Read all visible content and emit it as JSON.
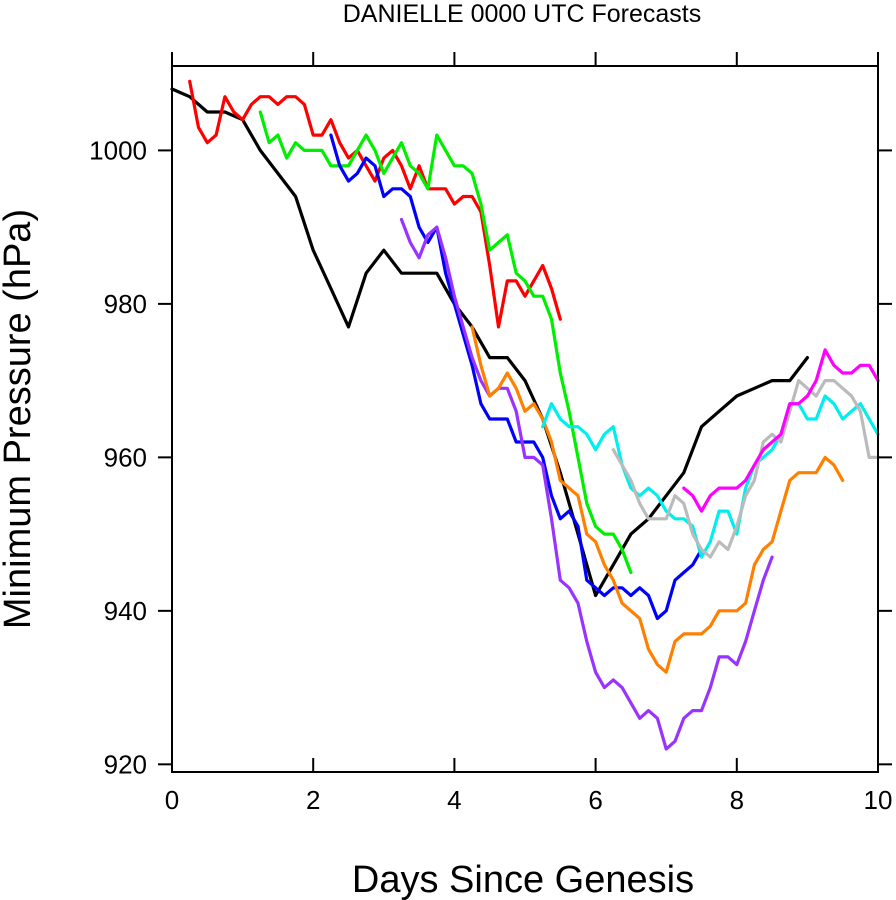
{
  "chart_data": {
    "type": "line",
    "title": "DANIELLE 0000 UTC Forecasts",
    "xlabel": "Days Since Genesis",
    "ylabel": "Minimum Pressure (hPa)",
    "xlim": [
      0,
      10
    ],
    "ylim": [
      919,
      1011
    ],
    "x_ticks": [
      0,
      2,
      4,
      6,
      8,
      10
    ],
    "y_ticks": [
      920,
      940,
      960,
      980,
      1000
    ],
    "x_tick_labels": [
      "0",
      "2",
      "4",
      "6",
      "8",
      "10"
    ],
    "y_tick_labels": [
      "920",
      "940",
      "960",
      "980",
      "1000"
    ],
    "grid": false,
    "legend": "none",
    "series": [
      {
        "color": "#000000",
        "x": [
          0,
          0.25,
          0.5,
          0.75,
          1,
          1.25,
          1.5,
          1.75,
          2,
          2.25,
          2.5,
          2.75,
          3,
          3.25,
          3.5,
          3.75,
          4,
          4.25,
          4.5,
          4.75,
          5,
          5.25,
          5.5,
          5.75,
          6,
          6.25,
          6.5,
          6.75,
          7,
          7.25,
          7.5,
          7.75,
          8,
          8.25,
          8.5,
          8.75,
          9
        ],
        "y": [
          1008,
          1007,
          1005,
          1005,
          1004,
          1000,
          997,
          994,
          987,
          982,
          977,
          984,
          987,
          984,
          984,
          984,
          980,
          977,
          973,
          973,
          970,
          965,
          958,
          950,
          942,
          946,
          950,
          952,
          955,
          958,
          964,
          966,
          968,
          969,
          970,
          970,
          973
        ]
      },
      {
        "color": "#ff0000",
        "x": [
          0.25,
          0.375,
          0.5,
          0.625,
          0.75,
          0.875,
          1,
          1.125,
          1.25,
          1.375,
          1.5,
          1.625,
          1.75,
          1.875,
          2,
          2.125,
          2.25,
          2.375,
          2.5,
          2.625,
          2.75,
          2.875,
          3,
          3.125,
          3.25,
          3.375,
          3.5,
          3.625,
          3.75,
          3.875,
          4,
          4.125,
          4.25,
          4.375,
          4.5,
          4.625,
          4.75,
          4.875,
          5,
          5.125,
          5.25,
          5.375,
          5.5
        ],
        "y": [
          1009,
          1003,
          1001,
          1002,
          1007,
          1005,
          1004,
          1006,
          1007,
          1007,
          1006,
          1007,
          1007,
          1006,
          1002,
          1002,
          1004,
          1001,
          999,
          1000,
          998,
          996,
          999,
          1000,
          998,
          995,
          998,
          995,
          995,
          995,
          993,
          994,
          994,
          992,
          985,
          977,
          983,
          983,
          981,
          983,
          985,
          982,
          978
        ]
      },
      {
        "color": "#00ee00",
        "x": [
          1.25,
          1.375,
          1.5,
          1.625,
          1.75,
          1.875,
          2,
          2.125,
          2.25,
          2.375,
          2.5,
          2.625,
          2.75,
          2.875,
          3,
          3.125,
          3.25,
          3.375,
          3.5,
          3.625,
          3.75,
          3.875,
          4,
          4.125,
          4.25,
          4.375,
          4.5,
          4.625,
          4.75,
          4.875,
          5,
          5.125,
          5.25,
          5.375,
          5.5,
          5.625,
          5.75,
          5.875,
          6,
          6.125,
          6.25,
          6.375,
          6.5
        ],
        "y": [
          1005,
          1001,
          1002,
          999,
          1001,
          1000,
          1000,
          1000,
          998,
          998,
          998,
          1000,
          1002,
          1000,
          997,
          999,
          1001,
          998,
          997,
          995,
          1002,
          1000,
          998,
          998,
          997,
          993,
          987,
          988,
          989,
          984,
          983,
          981,
          981,
          978,
          971,
          966,
          960,
          954,
          951,
          950,
          950,
          948,
          945
        ]
      },
      {
        "color": "#0000ff",
        "x": [
          2.25,
          2.375,
          2.5,
          2.625,
          2.75,
          2.875,
          3,
          3.125,
          3.25,
          3.375,
          3.5,
          3.625,
          3.75,
          3.875,
          4,
          4.125,
          4.25,
          4.375,
          4.5,
          4.625,
          4.75,
          4.875,
          5,
          5.125,
          5.25,
          5.375,
          5.5,
          5.625,
          5.75,
          5.875,
          6,
          6.125,
          6.25,
          6.375,
          6.5,
          6.625,
          6.75,
          6.875,
          7,
          7.125,
          7.25,
          7.375,
          7.5
        ],
        "y": [
          1002,
          998,
          996,
          997,
          999,
          998,
          994,
          995,
          995,
          994,
          990,
          988,
          990,
          984,
          980,
          976,
          972,
          967,
          965,
          965,
          965,
          962,
          962,
          962,
          960,
          955,
          952,
          953,
          951,
          944,
          943,
          942,
          943,
          943,
          942,
          943,
          942,
          939,
          940,
          944,
          945,
          946,
          948
        ]
      },
      {
        "color": "#9933ff",
        "x": [
          3.25,
          3.375,
          3.5,
          3.625,
          3.75,
          3.875,
          4,
          4.125,
          4.25,
          4.375,
          4.5,
          4.625,
          4.75,
          4.875,
          5,
          5.125,
          5.25,
          5.375,
          5.5,
          5.625,
          5.75,
          5.875,
          6,
          6.125,
          6.25,
          6.375,
          6.5,
          6.625,
          6.75,
          6.875,
          7,
          7.125,
          7.25,
          7.375,
          7.5,
          7.625,
          7.75,
          7.875,
          8,
          8.125,
          8.25,
          8.375,
          8.5
        ],
        "y": [
          991,
          988,
          986,
          989,
          990,
          986,
          981,
          977,
          973,
          970,
          968,
          969,
          969,
          966,
          960,
          960,
          959,
          952,
          944,
          943,
          941,
          936,
          932,
          930,
          931,
          930,
          928,
          926,
          927,
          926,
          922,
          923,
          926,
          927,
          927,
          930,
          934,
          934,
          933,
          936,
          940,
          944,
          947
        ]
      },
      {
        "color": "#ff8000",
        "x": [
          4.25,
          4.375,
          4.5,
          4.625,
          4.75,
          4.875,
          5,
          5.125,
          5.25,
          5.375,
          5.5,
          5.625,
          5.75,
          5.875,
          6,
          6.125,
          6.25,
          6.375,
          6.5,
          6.625,
          6.75,
          6.875,
          7,
          7.125,
          7.25,
          7.375,
          7.5,
          7.625,
          7.75,
          7.875,
          8,
          8.125,
          8.25,
          8.375,
          8.5,
          8.625,
          8.75,
          8.875,
          9,
          9.125,
          9.25,
          9.375,
          9.5
        ],
        "y": [
          977,
          972,
          968,
          969,
          971,
          969,
          966,
          967,
          965,
          962,
          957,
          956,
          955,
          950,
          949,
          946,
          944,
          941,
          940,
          939,
          935,
          933,
          932,
          936,
          937,
          937,
          937,
          938,
          940,
          940,
          940,
          941,
          946,
          948,
          949,
          953,
          957,
          958,
          958,
          958,
          960,
          959,
          957
        ]
      },
      {
        "color": "#00eeee",
        "x": [
          5.25,
          5.375,
          5.5,
          5.625,
          5.75,
          5.875,
          6,
          6.125,
          6.25,
          6.375,
          6.5,
          6.625,
          6.75,
          6.875,
          7,
          7.125,
          7.25,
          7.375,
          7.5,
          7.625,
          7.75,
          7.875,
          8,
          8.125,
          8.25,
          8.375,
          8.5,
          8.625,
          8.75,
          8.875,
          9,
          9.125,
          9.25,
          9.375,
          9.5,
          9.625,
          9.75,
          9.875,
          10
        ],
        "y": [
          964,
          967,
          965,
          964,
          964,
          963,
          961,
          963,
          964,
          959,
          956,
          955,
          956,
          955,
          953,
          952,
          952,
          951,
          947,
          949,
          953,
          953,
          950,
          956,
          959,
          960,
          961,
          963,
          967,
          967,
          965,
          965,
          968,
          967,
          965,
          966,
          967,
          965,
          963
        ]
      },
      {
        "color": "#bbbbbb",
        "x": [
          6.25,
          6.375,
          6.5,
          6.625,
          6.75,
          6.875,
          7,
          7.125,
          7.25,
          7.375,
          7.5,
          7.625,
          7.75,
          7.875,
          8,
          8.125,
          8.25,
          8.375,
          8.5,
          8.625,
          8.75,
          8.875,
          9,
          9.125,
          9.25,
          9.375,
          9.5,
          9.625,
          9.75,
          9.875,
          10
        ],
        "y": [
          961,
          959,
          957,
          954,
          952,
          952,
          952,
          955,
          954,
          950,
          948,
          947,
          949,
          948,
          951,
          955,
          957,
          962,
          963,
          962,
          966,
          970,
          969,
          968,
          970,
          970,
          969,
          968,
          966,
          960,
          960
        ]
      },
      {
        "color": "#ff00ff",
        "x": [
          7.25,
          7.375,
          7.5,
          7.625,
          7.75,
          7.875,
          8,
          8.125,
          8.25,
          8.375,
          8.5,
          8.625,
          8.75,
          8.875,
          9,
          9.125,
          9.25,
          9.375,
          9.5,
          9.625,
          9.75,
          9.875,
          10
        ],
        "y": [
          956,
          955,
          953,
          955,
          956,
          956,
          956,
          957,
          959,
          961,
          962,
          963,
          967,
          967,
          968,
          970,
          974,
          972,
          971,
          971,
          972,
          972,
          970
        ]
      }
    ]
  }
}
